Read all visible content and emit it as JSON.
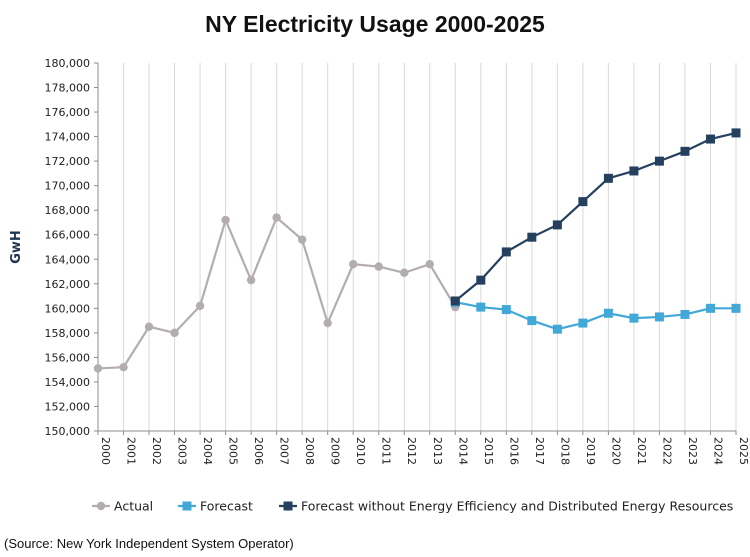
{
  "chart_data": {
    "type": "line",
    "title": "NY Electricity Usage 2000-2025",
    "ylabel": "GwH",
    "xlabel": "",
    "ylim": [
      150000,
      180000
    ],
    "ytick_step": 2000,
    "ytick_labels": [
      "150,000",
      "152,000",
      "154,000",
      "156,000",
      "158,000",
      "160,000",
      "162,000",
      "164,000",
      "166,000",
      "168,000",
      "170,000",
      "172,000",
      "174,000",
      "176,000",
      "178,000",
      "180,000"
    ],
    "x": [
      "2000",
      "2001",
      "2002",
      "2003",
      "2004",
      "2005",
      "2006",
      "2007",
      "2008",
      "2009",
      "2010",
      "2011",
      "2012",
      "2013",
      "2014",
      "2015",
      "2016",
      "2017",
      "2018",
      "2019",
      "2020",
      "2021",
      "2022",
      "2023",
      "2024",
      "2025"
    ],
    "grid": "vertical",
    "legend_position": "bottom",
    "series": [
      {
        "name": "Actual",
        "color": "#b3adb1",
        "marker": "circle",
        "x": [
          "2000",
          "2001",
          "2002",
          "2003",
          "2004",
          "2005",
          "2006",
          "2007",
          "2008",
          "2009",
          "2010",
          "2011",
          "2012",
          "2013",
          "2014"
        ],
        "values": [
          155100,
          155200,
          158500,
          158000,
          160200,
          167200,
          162300,
          167400,
          165600,
          158800,
          163600,
          163400,
          162900,
          163600,
          160100
        ]
      },
      {
        "name": "Forecast",
        "color": "#41a8d8",
        "marker": "square",
        "x": [
          "2014",
          "2015",
          "2016",
          "2017",
          "2018",
          "2019",
          "2020",
          "2021",
          "2022",
          "2023",
          "2024",
          "2025"
        ],
        "values": [
          160500,
          160100,
          159900,
          159000,
          158300,
          158800,
          159600,
          159200,
          159300,
          159500,
          160000,
          160000
        ]
      },
      {
        "name": "Forecast without Energy Efficiency and Distributed Energy Resources",
        "color": "#25405f",
        "marker": "square",
        "x": [
          "2014",
          "2015",
          "2016",
          "2017",
          "2018",
          "2019",
          "2020",
          "2021",
          "2022",
          "2023",
          "2024",
          "2025"
        ],
        "values": [
          160600,
          162300,
          164600,
          165800,
          166800,
          168700,
          170600,
          171200,
          172000,
          172800,
          173800,
          174300
        ]
      }
    ]
  },
  "source_note": "(Source: New York Independent System Operator)"
}
